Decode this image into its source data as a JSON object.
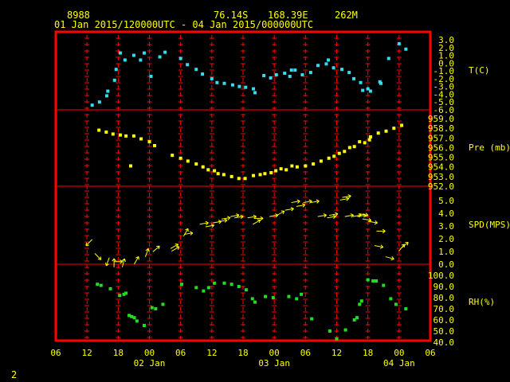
{
  "header": {
    "station": "8988",
    "lat": "76.14S",
    "lon": "168.39E",
    "elev": "262M",
    "period": "01 Jan 2015/120000UTC - 04 Jan 2015/000000UTC"
  },
  "footer": {
    "page_number": "2"
  },
  "colors": {
    "frame": "#ff0000",
    "text": "#ffff00",
    "temperature": "#33ddee",
    "pressure": "#ffff00",
    "wind": "#ffff00",
    "rh": "#22dd22",
    "background": "#000000"
  },
  "chart_data": {
    "type": "scatter",
    "x_unit": "hours since 01 Jan 2015 00 UTC",
    "x_range": [
      30,
      102
    ],
    "x_ticks": {
      "hours": [
        30,
        36,
        42,
        48,
        54,
        60,
        66,
        72,
        78,
        84,
        90,
        96,
        102
      ],
      "labels": [
        "06",
        "12",
        "18",
        "00",
        "06",
        "12",
        "18",
        "00",
        "06",
        "12",
        "18",
        "00",
        "06"
      ]
    },
    "x_day_labels": [
      {
        "hour": 48,
        "label": "02 Jan"
      },
      {
        "hour": 72,
        "label": "03 Jan"
      },
      {
        "hour": 96,
        "label": "04 Jan"
      }
    ],
    "panels": [
      {
        "name": "temperature",
        "label": "T(C)",
        "ylim": [
          -6,
          3
        ],
        "ticks": [
          3.0,
          2.0,
          1.0,
          0.0,
          -1.0,
          -2.0,
          -3.0,
          -4.0,
          -5.0,
          -6.0
        ],
        "tick_labels": [
          "3.0",
          "2.0",
          "1.0",
          "0.0",
          "-1.0",
          "-2.0",
          "-3.0",
          "-4.0",
          "-5.0",
          "-6.0"
        ],
        "points": [
          [
            37,
            -5.4
          ],
          [
            38.4,
            -5.0
          ],
          [
            39.8,
            -4.2
          ],
          [
            40,
            -3.6
          ],
          [
            41.3,
            -2.2
          ],
          [
            41.6,
            -0.8
          ],
          [
            42.4,
            1.3
          ],
          [
            43.3,
            0.4
          ],
          [
            45,
            1.0
          ],
          [
            46.3,
            0.4
          ],
          [
            47,
            1.3
          ],
          [
            48.3,
            -1.7
          ],
          [
            50,
            0.8
          ],
          [
            51,
            1.4
          ],
          [
            54,
            0.6
          ],
          [
            55.3,
            -0.2
          ],
          [
            57,
            -0.8
          ],
          [
            58.2,
            -1.4
          ],
          [
            60,
            -2.0
          ],
          [
            61,
            -2.5
          ],
          [
            62.4,
            -2.6
          ],
          [
            64,
            -2.8
          ],
          [
            65.3,
            -3.0
          ],
          [
            66.5,
            -3.1
          ],
          [
            68,
            -3.3
          ],
          [
            68.3,
            -3.8
          ],
          [
            70,
            -1.6
          ],
          [
            71.3,
            -1.9
          ],
          [
            72.4,
            -1.5
          ],
          [
            74,
            -1.3
          ],
          [
            75,
            -1.7
          ],
          [
            75.3,
            -0.9
          ],
          [
            76,
            -0.9
          ],
          [
            77.4,
            -1.5
          ],
          [
            79,
            -1.2
          ],
          [
            80.4,
            -0.3
          ],
          [
            82,
            -0.1
          ],
          [
            82.4,
            0.4
          ],
          [
            83.4,
            -0.6
          ],
          [
            85,
            -0.8
          ],
          [
            86.4,
            -1.2
          ],
          [
            87.3,
            -2.0
          ],
          [
            88.6,
            -2.5
          ],
          [
            89,
            -3.5
          ],
          [
            90,
            -3.3
          ],
          [
            90.5,
            -3.6
          ],
          [
            92.3,
            -2.4
          ],
          [
            92.5,
            -2.6
          ],
          [
            94,
            0.6
          ],
          [
            96,
            2.5
          ],
          [
            97.3,
            1.8
          ]
        ]
      },
      {
        "name": "pressure",
        "label": "Pre (mb)",
        "ylim": [
          952,
          960
        ],
        "ticks": [
          959.0,
          958.0,
          957.0,
          956.0,
          955.0,
          954.0,
          953.0,
          952.0
        ],
        "tick_labels": [
          "959.0",
          "958.0",
          "957.0",
          "956.0",
          "955.0",
          "954.0",
          "953.0",
          "952.0"
        ],
        "points": [
          [
            38.3,
            957.8
          ],
          [
            39.7,
            957.6
          ],
          [
            41,
            957.4
          ],
          [
            42.4,
            957.3
          ],
          [
            43.5,
            957.2
          ],
          [
            44.4,
            954.1
          ],
          [
            45,
            957.2
          ],
          [
            46.4,
            956.9
          ],
          [
            48,
            956.6
          ],
          [
            49,
            956.2
          ],
          [
            52.4,
            955.2
          ],
          [
            54,
            954.9
          ],
          [
            55.4,
            954.6
          ],
          [
            57,
            954.3
          ],
          [
            58.3,
            954.0
          ],
          [
            59.3,
            953.7
          ],
          [
            60.5,
            953.6
          ],
          [
            61.2,
            953.3
          ],
          [
            62.3,
            953.2
          ],
          [
            63.8,
            953.0
          ],
          [
            65.2,
            952.8
          ],
          [
            66.4,
            952.8
          ],
          [
            68,
            953.1
          ],
          [
            69.3,
            953.2
          ],
          [
            70.2,
            953.3
          ],
          [
            71.4,
            953.4
          ],
          [
            72.3,
            953.6
          ],
          [
            73.3,
            953.8
          ],
          [
            74.3,
            953.7
          ],
          [
            75.4,
            954.1
          ],
          [
            76.4,
            954.0
          ],
          [
            78,
            954.1
          ],
          [
            79.5,
            954.3
          ],
          [
            81,
            954.6
          ],
          [
            82.5,
            954.9
          ],
          [
            83.5,
            955.1
          ],
          [
            84.5,
            955.4
          ],
          [
            85.5,
            955.6
          ],
          [
            86.5,
            956.0
          ],
          [
            87.4,
            956.1
          ],
          [
            88.4,
            956.6
          ],
          [
            89.4,
            956.5
          ],
          [
            90.3,
            956.8
          ],
          [
            90.5,
            957.1
          ],
          [
            92,
            957.5
          ],
          [
            93.5,
            957.7
          ],
          [
            95,
            958.0
          ],
          [
            96.5,
            958.3
          ]
        ]
      },
      {
        "name": "wind_speed",
        "label": "SPD(MPS)",
        "ylim": [
          0,
          6
        ],
        "ticks": [
          5.0,
          4.0,
          3.0,
          2.0,
          1.0,
          0.0
        ],
        "tick_labels": [
          "5.0",
          "4.0",
          "3.0",
          "2.0",
          "1.0",
          "0.0"
        ],
        "points": [
          [
            36.4,
            1.7
          ],
          [
            38.1,
            0.6
          ],
          [
            40,
            0.2
          ],
          [
            41.2,
            0.1
          ],
          [
            42,
            0.2
          ],
          [
            43,
            0.1
          ],
          [
            45.5,
            0.3
          ],
          [
            47.5,
            0.9
          ],
          [
            49.3,
            1.2
          ],
          [
            52.8,
            1.4
          ],
          [
            53,
            1.2
          ],
          [
            55,
            2.5
          ],
          [
            55.5,
            2.4
          ],
          [
            58.5,
            3.2
          ],
          [
            59.6,
            3.0
          ],
          [
            61,
            3.3
          ],
          [
            62.1,
            3.4
          ],
          [
            62.7,
            3.6
          ],
          [
            64.4,
            3.8
          ],
          [
            65.2,
            3.7
          ],
          [
            67.7,
            3.7
          ],
          [
            68.6,
            3.3
          ],
          [
            69,
            3.6
          ],
          [
            71.9,
            3.8
          ],
          [
            73.2,
            4.0
          ],
          [
            74.9,
            4.3
          ],
          [
            76.1,
            4.9
          ],
          [
            77.1,
            4.6
          ],
          [
            78.4,
            4.9
          ],
          [
            79.8,
            4.9
          ],
          [
            81.2,
            3.8
          ],
          [
            83,
            3.7
          ],
          [
            83.4,
            3.9
          ],
          [
            85.5,
            5.1
          ],
          [
            85.9,
            5.3
          ],
          [
            86.4,
            3.8
          ],
          [
            87.9,
            3.8
          ],
          [
            88.8,
            3.8
          ],
          [
            89.2,
            3.9
          ],
          [
            89.8,
            3.5
          ],
          [
            91,
            3.3
          ],
          [
            92.1,
            1.4
          ],
          [
            92.5,
            2.6
          ],
          [
            94.2,
            0.5
          ],
          [
            96.5,
            1.3
          ],
          [
            97.1,
            1.5
          ]
        ],
        "directions_deg": [
          225,
          135,
          200,
          0,
          90,
          15,
          30,
          20,
          50,
          60,
          60,
          30,
          80,
          80,
          80,
          80,
          80,
          80,
          80,
          80,
          80,
          60,
          90,
          80,
          60,
          80,
          80,
          80,
          80,
          80,
          80,
          80,
          80,
          80,
          80,
          80,
          80,
          80,
          100,
          100,
          100,
          100,
          90,
          105,
          40,
          50
        ]
      },
      {
        "name": "relative_humidity",
        "label": "RH(%)",
        "ylim": [
          40,
          100
        ],
        "ticks": [
          100.0,
          90.0,
          80.0,
          70.0,
          60.0,
          50.0,
          40.0
        ],
        "tick_labels": [
          "100.0",
          "90.0",
          "80.0",
          "70.0",
          "60.0",
          "50.0",
          "40.0"
        ],
        "points": [
          [
            38,
            92
          ],
          [
            38.7,
            91
          ],
          [
            40.5,
            88
          ],
          [
            42.3,
            82
          ],
          [
            43.1,
            83
          ],
          [
            43.5,
            84
          ],
          [
            44.1,
            64
          ],
          [
            44.6,
            63
          ],
          [
            45.1,
            62
          ],
          [
            45.6,
            59
          ],
          [
            47,
            55
          ],
          [
            48.5,
            71
          ],
          [
            49.2,
            70
          ],
          [
            50.6,
            74
          ],
          [
            54.2,
            92
          ],
          [
            57,
            89
          ],
          [
            58.4,
            86
          ],
          [
            59.4,
            89
          ],
          [
            60.5,
            93
          ],
          [
            62.4,
            93
          ],
          [
            63.8,
            92
          ],
          [
            65.2,
            90
          ],
          [
            66.6,
            87
          ],
          [
            67.8,
            79
          ],
          [
            68.3,
            76
          ],
          [
            70.3,
            81
          ],
          [
            71.8,
            80
          ],
          [
            74.8,
            81
          ],
          [
            76.3,
            79
          ],
          [
            77.2,
            83
          ],
          [
            79.2,
            61
          ],
          [
            82.7,
            50
          ],
          [
            84,
            43
          ],
          [
            85.7,
            51
          ],
          [
            87.4,
            60
          ],
          [
            87.9,
            62
          ],
          [
            88.4,
            74
          ],
          [
            88.8,
            77
          ],
          [
            90,
            96
          ],
          [
            91,
            95
          ],
          [
            91.6,
            95
          ],
          [
            93,
            91
          ],
          [
            94.4,
            79
          ],
          [
            95.4,
            74
          ],
          [
            97.3,
            70
          ]
        ]
      }
    ]
  }
}
